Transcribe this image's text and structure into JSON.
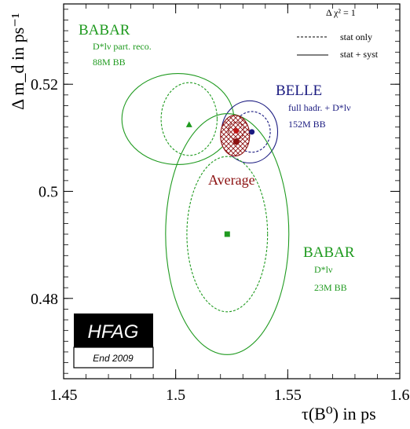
{
  "chart_data": {
    "type": "scatter",
    "xlabel": "τ(B⁰) in ps",
    "ylabel": "Δ m_d in ps⁻¹",
    "xlim": [
      1.45,
      1.6
    ],
    "ylim": [
      0.465,
      0.535
    ],
    "x_ticks": [
      1.45,
      1.5,
      1.55,
      1.6
    ],
    "x_tick_labels": [
      "1.45",
      "1.5",
      "1.55",
      "1.6"
    ],
    "y_ticks": [
      0.48,
      0.5,
      0.52
    ],
    "y_tick_labels": [
      "0.48",
      "0.5",
      "0.52"
    ],
    "grid": false,
    "legend": {
      "title": "Δ χ² = 1",
      "entries": [
        {
          "label": "stat only",
          "style": "dashed"
        },
        {
          "label": "stat + syst",
          "style": "solid"
        }
      ]
    },
    "measurements": [
      {
        "group": [
          "BABAR",
          "D*lν part. reco.",
          "88M BB"
        ],
        "color": "#1f9a1f",
        "marker": "triangle",
        "x": 1.506,
        "y": 0.5125,
        "stat_ellipse": {
          "cx": 1.506,
          "cy": 0.5135,
          "rx": 0.0125,
          "ry": 0.0068,
          "angle": 0
        },
        "total_ellipse": {
          "cx": 1.501,
          "cy": 0.5135,
          "rx": 0.025,
          "ry": 0.0085,
          "angle": 0
        }
      },
      {
        "group": [
          "BELLE",
          "full hadr. + D*lν",
          "152M BB"
        ],
        "color": "#1a1a80",
        "marker": "circle",
        "x": 1.534,
        "y": 0.5111,
        "stat_ellipse": {
          "cx": 1.534,
          "cy": 0.5111,
          "rx": 0.0082,
          "ry": 0.0038,
          "angle": 0
        },
        "total_ellipse": {
          "cx": 1.533,
          "cy": 0.5111,
          "rx": 0.0125,
          "ry": 0.0058,
          "angle": 0
        }
      },
      {
        "group": [
          "BABAR",
          "D*lν",
          "23M BB"
        ],
        "color": "#1f9a1f",
        "marker": "square",
        "x": 1.523,
        "y": 0.492,
        "stat_ellipse": {
          "cx": 1.523,
          "cy": 0.492,
          "rx": 0.018,
          "ry": 0.0145,
          "angle": 0
        },
        "total_ellipse": {
          "cx": 1.523,
          "cy": 0.492,
          "rx": 0.0275,
          "ry": 0.0225,
          "angle": 0
        }
      }
    ],
    "average": {
      "label": "Average",
      "color": "#8b1010",
      "x": 1.527,
      "y": 0.5093,
      "stat_ellipse": {
        "cx": 1.527,
        "cy": 0.5113,
        "rx": 0.0035,
        "ry": 0.0016,
        "angle": 0
      },
      "total_ellipse": {
        "cx": 1.5265,
        "cy": 0.5104,
        "rx": 0.0065,
        "ry": 0.0038,
        "angle": 0
      }
    },
    "badge": {
      "title": "HFAG",
      "subtitle": "End 2009"
    }
  }
}
